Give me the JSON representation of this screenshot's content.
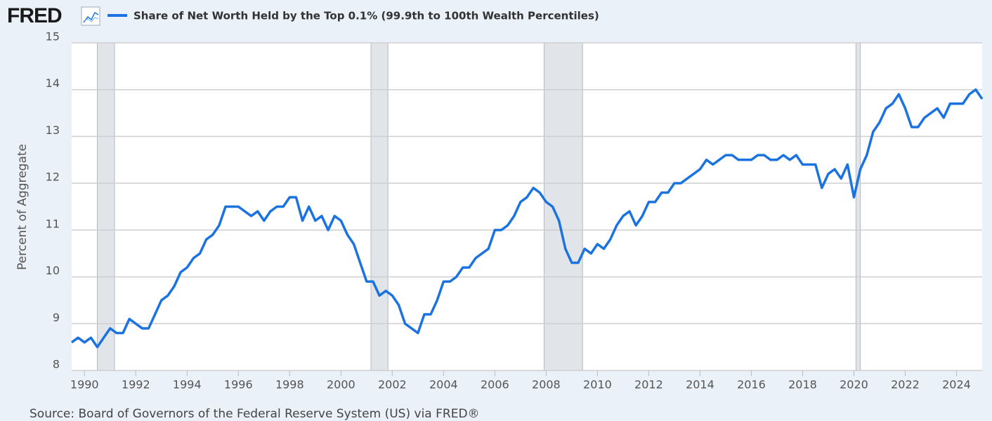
{
  "chart_data": {
    "type": "line",
    "logo": "FRED",
    "y_label": "Percent of Aggregate",
    "source": "Source: Board of Governors of the Federal Reserve System (US) via FRED®",
    "x": [
      1989.5,
      1989.75,
      1990,
      1990.25,
      1990.5,
      1990.75,
      1991,
      1991.25,
      1991.5,
      1991.75,
      1992,
      1992.25,
      1992.5,
      1992.75,
      1993,
      1993.25,
      1993.5,
      1993.75,
      1994,
      1994.25,
      1994.5,
      1994.75,
      1995,
      1995.25,
      1995.5,
      1995.75,
      1996,
      1996.25,
      1996.5,
      1996.75,
      1997,
      1997.25,
      1997.5,
      1997.75,
      1998,
      1998.25,
      1998.5,
      1998.75,
      1999,
      1999.25,
      1999.5,
      1999.75,
      2000,
      2000.25,
      2000.5,
      2000.75,
      2001,
      2001.25,
      2001.5,
      2001.75,
      2002,
      2002.25,
      2002.5,
      2002.75,
      2003,
      2003.25,
      2003.5,
      2003.75,
      2004,
      2004.25,
      2004.5,
      2004.75,
      2005,
      2005.25,
      2005.5,
      2005.75,
      2006,
      2006.25,
      2006.5,
      2006.75,
      2007,
      2007.25,
      2007.5,
      2007.75,
      2008,
      2008.25,
      2008.5,
      2008.75,
      2009,
      2009.25,
      2009.5,
      2009.75,
      2010,
      2010.25,
      2010.5,
      2010.75,
      2011,
      2011.25,
      2011.5,
      2011.75,
      2012,
      2012.25,
      2012.5,
      2012.75,
      2013,
      2013.25,
      2013.5,
      2013.75,
      2014,
      2014.25,
      2014.5,
      2014.75,
      2015,
      2015.25,
      2015.5,
      2015.75,
      2016,
      2016.25,
      2016.5,
      2016.75,
      2017,
      2017.25,
      2017.5,
      2017.75,
      2018,
      2018.25,
      2018.5,
      2018.75,
      2019,
      2019.25,
      2019.5,
      2019.75,
      2020,
      2020.25,
      2020.5,
      2020.75,
      2021,
      2021.25,
      2021.5,
      2021.75,
      2022,
      2022.25,
      2022.5,
      2022.75,
      2023,
      2023.25,
      2023.5,
      2023.75,
      2024,
      2024.25,
      2024.5,
      2024.75,
      2025
    ],
    "series": [
      {
        "name": "Share of Net Worth Held by the Top 0.1% (99.9th to 100th Wealth Percentiles)",
        "color": "#1a73e0",
        "values": [
          8.6,
          8.7,
          8.6,
          8.7,
          8.5,
          8.7,
          8.9,
          8.8,
          8.8,
          9.1,
          9.0,
          8.9,
          8.9,
          9.2,
          9.5,
          9.6,
          9.8,
          10.1,
          10.2,
          10.4,
          10.5,
          10.8,
          10.9,
          11.1,
          11.5,
          11.5,
          11.5,
          11.4,
          11.3,
          11.4,
          11.2,
          11.4,
          11.5,
          11.5,
          11.7,
          11.7,
          11.2,
          11.5,
          11.2,
          11.3,
          11.0,
          11.3,
          11.2,
          10.9,
          10.7,
          10.3,
          9.9,
          9.9,
          9.6,
          9.7,
          9.6,
          9.4,
          9.0,
          8.9,
          8.8,
          9.2,
          9.2,
          9.5,
          9.9,
          9.9,
          10.0,
          10.2,
          10.2,
          10.4,
          10.5,
          10.6,
          11.0,
          11.0,
          11.1,
          11.3,
          11.6,
          11.7,
          11.9,
          11.8,
          11.6,
          11.5,
          11.2,
          10.6,
          10.3,
          10.3,
          10.6,
          10.5,
          10.7,
          10.6,
          10.8,
          11.1,
          11.3,
          11.4,
          11.1,
          11.3,
          11.6,
          11.6,
          11.8,
          11.8,
          12.0,
          12.0,
          12.1,
          12.2,
          12.3,
          12.5,
          12.4,
          12.5,
          12.6,
          12.6,
          12.5,
          12.5,
          12.5,
          12.6,
          12.6,
          12.5,
          12.5,
          12.6,
          12.5,
          12.6,
          12.4,
          12.4,
          12.4,
          11.9,
          12.2,
          12.3,
          12.1,
          12.4,
          11.7,
          12.3,
          12.6,
          13.1,
          13.3,
          13.6,
          13.7,
          13.9,
          13.6,
          13.2,
          13.2,
          13.4,
          13.5,
          13.6,
          13.4,
          13.7,
          13.7,
          13.7,
          13.9,
          14.0,
          13.8
        ]
      }
    ],
    "recessions": [
      {
        "start": 1990.5,
        "end": 1991.17
      },
      {
        "start": 2001.17,
        "end": 2001.83
      },
      {
        "start": 2007.92,
        "end": 2009.42
      },
      {
        "start": 2020.08,
        "end": 2020.25
      }
    ],
    "xlim": [
      1989.5,
      2025
    ],
    "xticks": [
      1990,
      1992,
      1994,
      1996,
      1998,
      2000,
      2002,
      2004,
      2006,
      2008,
      2010,
      2012,
      2014,
      2016,
      2018,
      2020,
      2022,
      2024
    ],
    "ylim": [
      8,
      15
    ],
    "yticks": [
      8,
      9,
      10,
      11,
      12,
      13,
      14,
      15
    ],
    "grid": true
  }
}
